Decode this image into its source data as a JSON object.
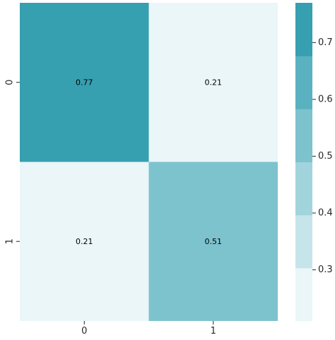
{
  "chart_data": {
    "type": "heatmap",
    "title": "",
    "xlabel": "",
    "ylabel": "",
    "x_categories": [
      "0",
      "1"
    ],
    "y_categories": [
      "0",
      "1"
    ],
    "values": [
      [
        0.77,
        0.21
      ],
      [
        0.21,
        0.51
      ]
    ],
    "annotations": true,
    "colorbar": {
      "position": "right",
      "range": [
        0.21,
        0.77
      ],
      "ticks": [
        0.3,
        0.4,
        0.5,
        0.6,
        0.7
      ],
      "tick_labels": [
        "0.3",
        "0.4",
        "0.5",
        "0.6",
        "0.7"
      ],
      "discrete_colors": [
        "#eaf6f8",
        "#c6e5ea",
        "#a1d4dc",
        "#7cc3ce",
        "#5ab2c0",
        "#369fb0"
      ]
    },
    "colormap": "light-to-teal"
  }
}
